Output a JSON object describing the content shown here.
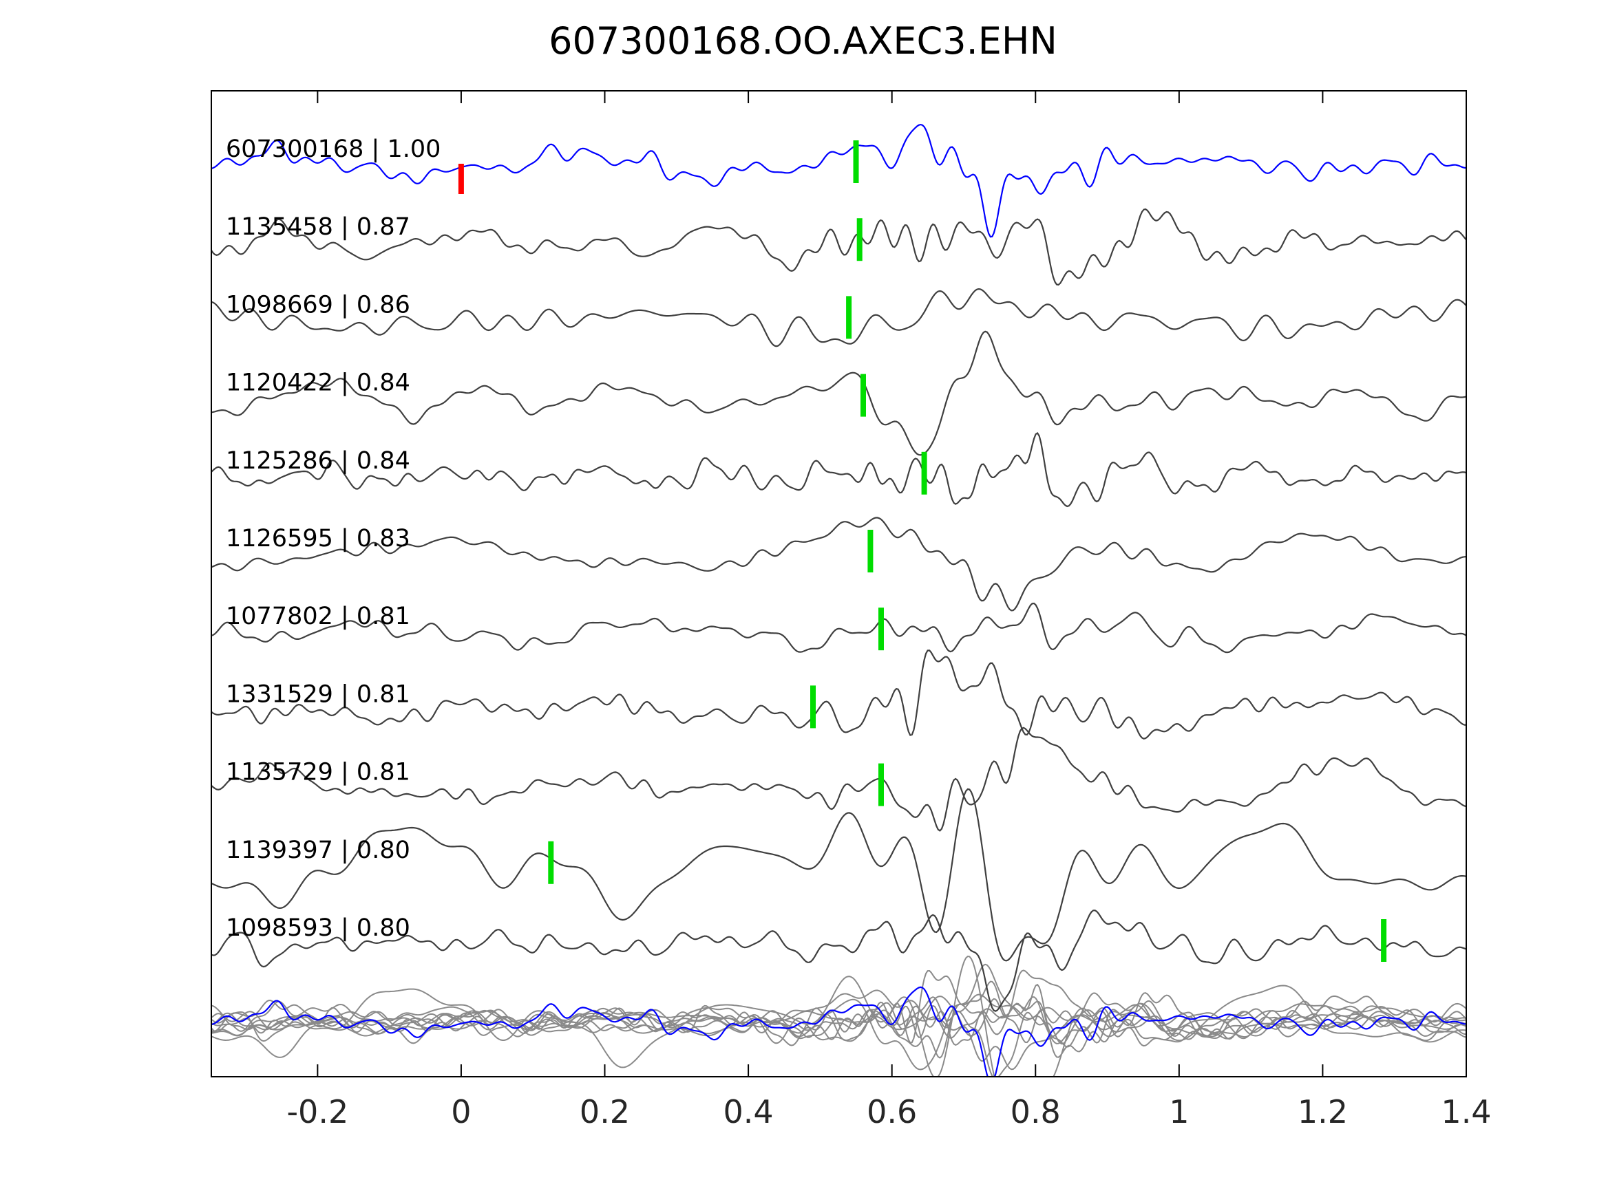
{
  "chart_data": {
    "type": "line",
    "title": "607300168.OO.AXEC3.EHN",
    "xlabel": "",
    "ylabel": "",
    "xlim": [
      -0.348,
      1.4
    ],
    "grid": false,
    "legend": "none",
    "x_ticks": {
      "values": [
        -0.2,
        0,
        0.2,
        0.4,
        0.6,
        0.8,
        1,
        1.2,
        1.4
      ],
      "labels": [
        "-0.2",
        "0",
        "0.2",
        "0.4",
        "0.6",
        "0.8",
        "1",
        "1.2",
        "1.4"
      ]
    },
    "colors": {
      "reference_trace": "#0000ff",
      "match_trace": "#3f3f3f",
      "overlay_trace": "#8a8a8a",
      "pick_marker": "#00dd00",
      "reference_marker": "#ff0000",
      "axis": "#000000",
      "tick_label": "#262626"
    },
    "traces": [
      {
        "id": "607300168",
        "corr": "1.00",
        "label": "607300168 | 1.00",
        "pick": 0.55,
        "ref_pick": 0.0,
        "is_reference": true,
        "seed": 3,
        "freq_scale": 1.0,
        "amp_scale": 1.0
      },
      {
        "id": "1135458",
        "corr": "0.87",
        "label": "1135458 | 0.87",
        "pick": 0.555,
        "ref_pick": null,
        "is_reference": false,
        "seed": 5,
        "freq_scale": 1.05,
        "amp_scale": 1.1
      },
      {
        "id": "1098669",
        "corr": "0.86",
        "label": "1098669 | 0.86",
        "pick": 0.54,
        "ref_pick": null,
        "is_reference": false,
        "seed": 8,
        "freq_scale": 0.85,
        "amp_scale": 0.85
      },
      {
        "id": "1120422",
        "corr": "0.84",
        "label": "1120422 | 0.84",
        "pick": 0.56,
        "ref_pick": null,
        "is_reference": false,
        "seed": 11,
        "freq_scale": 0.9,
        "amp_scale": 0.9
      },
      {
        "id": "1125286",
        "corr": "0.84",
        "label": "1125286 | 0.84",
        "pick": 0.645,
        "ref_pick": null,
        "is_reference": false,
        "seed": 13,
        "freq_scale": 1.25,
        "amp_scale": 1.0
      },
      {
        "id": "1126595",
        "corr": "0.83",
        "label": "1126595 | 0.83",
        "pick": 0.57,
        "ref_pick": null,
        "is_reference": false,
        "seed": 17,
        "freq_scale": 0.9,
        "amp_scale": 0.85
      },
      {
        "id": "1077802",
        "corr": "0.81",
        "label": "1077802 | 0.81",
        "pick": 0.585,
        "ref_pick": null,
        "is_reference": false,
        "seed": 19,
        "freq_scale": 1.0,
        "amp_scale": 1.0
      },
      {
        "id": "1331529",
        "corr": "0.81",
        "label": "1331529 | 0.81",
        "pick": 0.49,
        "ref_pick": null,
        "is_reference": false,
        "seed": 23,
        "freq_scale": 1.0,
        "amp_scale": 1.05
      },
      {
        "id": "1135729",
        "corr": "0.81",
        "label": "1135729 | 0.81",
        "pick": 0.585,
        "ref_pick": null,
        "is_reference": false,
        "seed": 29,
        "freq_scale": 1.05,
        "amp_scale": 1.0
      },
      {
        "id": "1139397",
        "corr": "0.80",
        "label": "1139397 | 0.80",
        "pick": 0.125,
        "ref_pick": null,
        "is_reference": false,
        "seed": 31,
        "freq_scale": 0.45,
        "amp_scale": 1.35
      },
      {
        "id": "1098593",
        "corr": "0.80",
        "label": "1098593 | 0.80",
        "pick": 1.285,
        "ref_pick": null,
        "is_reference": false,
        "seed": 37,
        "freq_scale": 1.0,
        "amp_scale": 1.0
      }
    ],
    "overlay": {
      "present": true,
      "highlight_id": "607300168"
    }
  }
}
